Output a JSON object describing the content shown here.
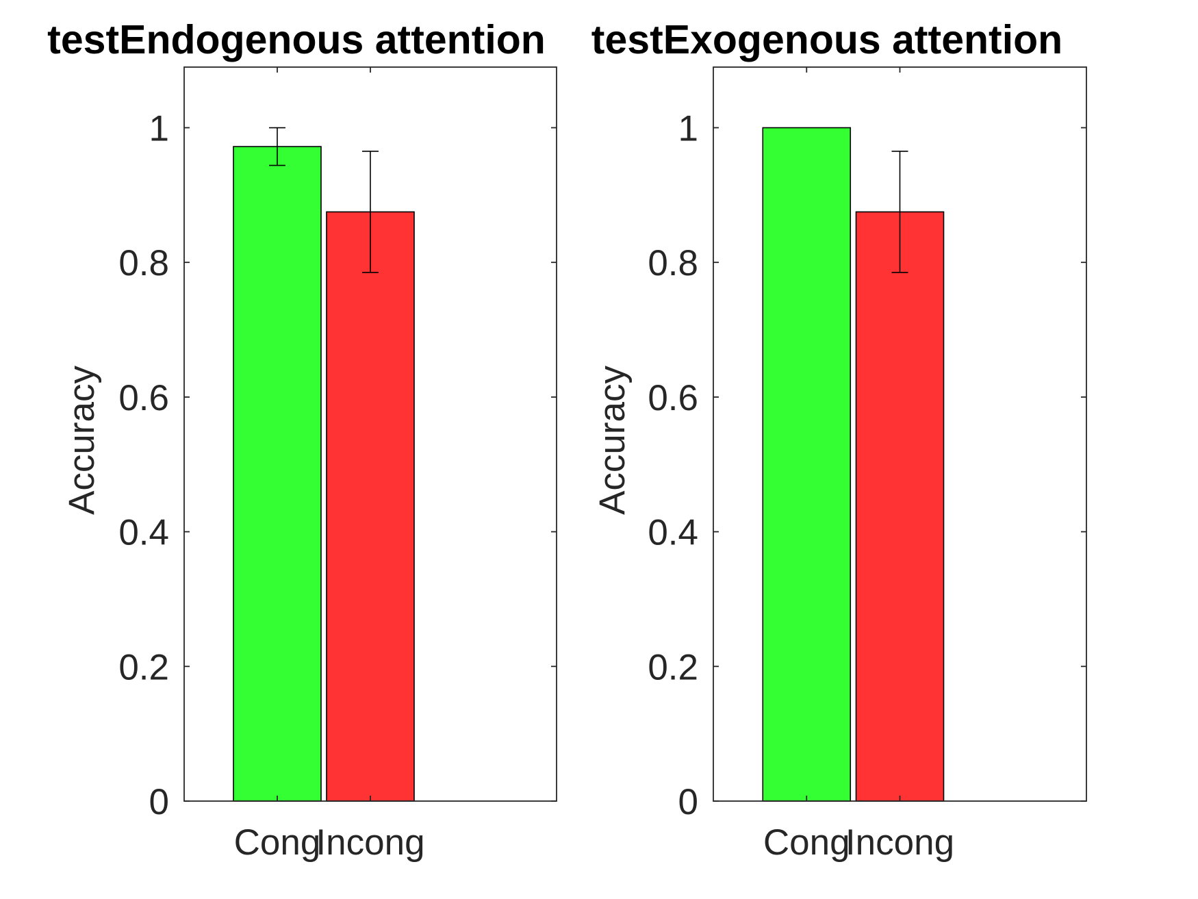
{
  "chart_data": [
    {
      "type": "bar",
      "title": "testEndogenous attention",
      "xlabel": "",
      "ylabel": "Accuracy",
      "ylim": [
        0,
        1.09
      ],
      "yticks": [
        0,
        0.2,
        0.4,
        0.6,
        0.8,
        1
      ],
      "ytick_labels": [
        "0",
        "0.2",
        "0.4",
        "0.6",
        "0.8",
        "1"
      ],
      "categories": [
        "Cong",
        "Incong"
      ],
      "values": [
        0.972,
        0.875
      ],
      "error_low": [
        0.944,
        0.785
      ],
      "error_high": [
        1.0,
        0.965
      ],
      "colors": [
        "#33ff33",
        "#ff3333"
      ],
      "grid": false,
      "legend": "none"
    },
    {
      "type": "bar",
      "title": "testExogenous attention",
      "xlabel": "",
      "ylabel": "Accuracy",
      "ylim": [
        0,
        1.09
      ],
      "yticks": [
        0,
        0.2,
        0.4,
        0.6,
        0.8,
        1
      ],
      "ytick_labels": [
        "0",
        "0.2",
        "0.4",
        "0.6",
        "0.8",
        "1"
      ],
      "categories": [
        "Cong",
        "Incong"
      ],
      "values": [
        1.0,
        0.875
      ],
      "error_low": [
        null,
        0.785
      ],
      "error_high": [
        null,
        0.965
      ],
      "colors": [
        "#33ff33",
        "#ff3333"
      ],
      "grid": false,
      "legend": "none"
    }
  ]
}
